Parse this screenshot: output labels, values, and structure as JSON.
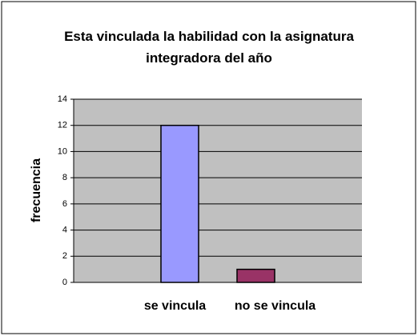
{
  "chart_data": {
    "type": "bar",
    "title": "Esta vinculada la habilidad con la asignatura integradora del año",
    "y_label": "frecuencia",
    "categories": [
      "se vincula",
      "no se vincula"
    ],
    "values": [
      12,
      1
    ],
    "colors": [
      "#9999ff",
      "#993366"
    ],
    "ylim": [
      0,
      14
    ],
    "yticks": [
      0,
      2,
      4,
      6,
      8,
      10,
      12,
      14
    ],
    "grid": true
  }
}
